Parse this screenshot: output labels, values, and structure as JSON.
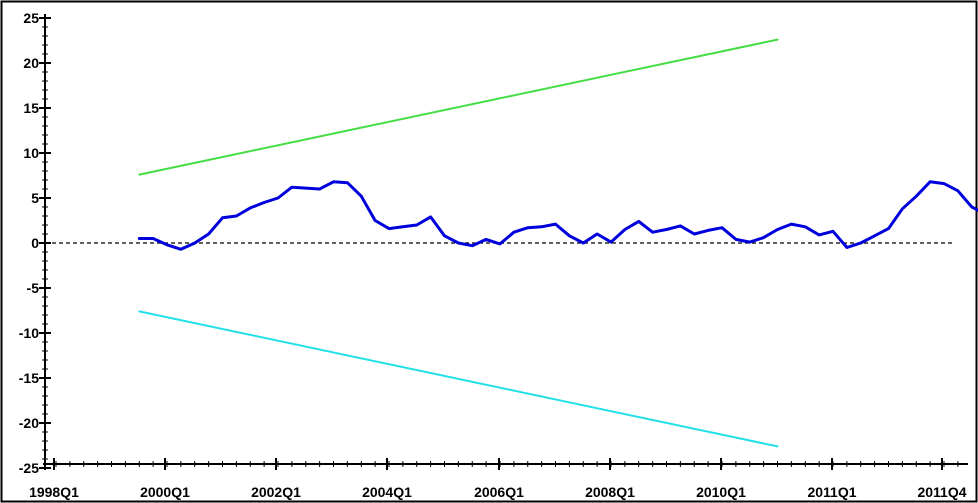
{
  "chart_data": {
    "type": "line",
    "title": "",
    "xlabel": "",
    "ylabel": "",
    "xlim": [
      "1998Q1",
      "2011Q4"
    ],
    "ylim": [
      -25,
      25
    ],
    "x_tick_labels": [
      "1998Q1",
      "2000Q1",
      "2002Q1",
      "2004Q1",
      "2006Q1",
      "2008Q1",
      "2010Q1",
      "2011Q1",
      "2011Q4"
    ],
    "y_tick_labels": [
      "25",
      "20",
      "15",
      "10",
      "5",
      "0",
      "-5",
      "-10",
      "-15",
      "-20",
      "-25"
    ],
    "zero_line": {
      "y": 0,
      "style": "dashed",
      "color": "#000000"
    },
    "series": [
      {
        "color": "#44dd44",
        "points": [
          [
            "1999Q3",
            7.6
          ],
          [
            "2011Q1",
            22.6
          ]
        ]
      },
      {
        "color": "#22e0e8",
        "points": [
          [
            "1999Q3",
            -7.6
          ],
          [
            "2011Q1",
            -22.6
          ]
        ]
      },
      {
        "color": "#0000dd",
        "points": [
          [
            "1999Q3",
            0.5
          ],
          [
            "1999Q4",
            0.5
          ],
          [
            "2000Q1",
            -0.2
          ],
          [
            "2000Q2",
            -0.7
          ],
          [
            "2000Q3",
            0.0
          ],
          [
            "2000Q4",
            1.0
          ],
          [
            "2001Q1",
            2.8
          ],
          [
            "2001Q2",
            3.0
          ],
          [
            "2001Q3",
            3.9
          ],
          [
            "2001Q4",
            4.5
          ],
          [
            "2002Q1",
            5.0
          ],
          [
            "2002Q2",
            6.2
          ],
          [
            "2002Q3",
            6.1
          ],
          [
            "2002Q4",
            6.0
          ],
          [
            "2003Q1",
            6.8
          ],
          [
            "2003Q2",
            6.7
          ],
          [
            "2003Q3",
            5.2
          ],
          [
            "2003Q4",
            2.5
          ],
          [
            "2004Q1",
            1.6
          ],
          [
            "2004Q2",
            1.8
          ],
          [
            "2004Q3",
            2.0
          ],
          [
            "2004Q4",
            2.9
          ],
          [
            "2005Q1",
            0.8
          ],
          [
            "2005Q2",
            0.0
          ],
          [
            "2005Q3",
            -0.3
          ],
          [
            "2005Q4",
            0.4
          ],
          [
            "2006Q1",
            -0.1
          ],
          [
            "2006Q2",
            1.2
          ],
          [
            "2006Q3",
            1.7
          ],
          [
            "2006Q4",
            1.8
          ],
          [
            "2007Q1",
            2.1
          ],
          [
            "2007Q2",
            0.8
          ],
          [
            "2007Q3",
            0.0
          ],
          [
            "2007Q4",
            1.0
          ],
          [
            "2008Q1",
            0.1
          ],
          [
            "2008Q2",
            1.5
          ],
          [
            "2008Q3",
            2.4
          ],
          [
            "2008Q4",
            1.2
          ],
          [
            "2009Q1",
            1.5
          ],
          [
            "2009Q2",
            1.9
          ],
          [
            "2009Q3",
            1.0
          ],
          [
            "2009Q4",
            1.4
          ],
          [
            "2010Q1",
            1.7
          ],
          [
            "2010Q2",
            0.4
          ],
          [
            "2010Q3",
            0.1
          ],
          [
            "2010Q4",
            0.6
          ],
          [
            "2011Q1",
            1.5
          ],
          [
            "2011Q2",
            2.1
          ],
          [
            "2011Q3",
            1.8
          ],
          [
            "2011Q4",
            0.9
          ],
          [
            "2012Q1",
            1.3
          ],
          [
            "2012Q2",
            -0.5
          ],
          [
            "2012Q3",
            0.0
          ],
          [
            "2012Q4",
            0.8
          ],
          [
            "2013Q1",
            1.6
          ],
          [
            "2013Q2",
            3.8
          ],
          [
            "2013Q3",
            5.2
          ],
          [
            "2013Q4",
            6.8
          ],
          [
            "2014Q1",
            6.6
          ],
          [
            "2014Q2",
            5.8
          ],
          [
            "2014Q3",
            4.0
          ],
          [
            "2014Q4",
            3.2
          ]
        ]
      }
    ]
  }
}
